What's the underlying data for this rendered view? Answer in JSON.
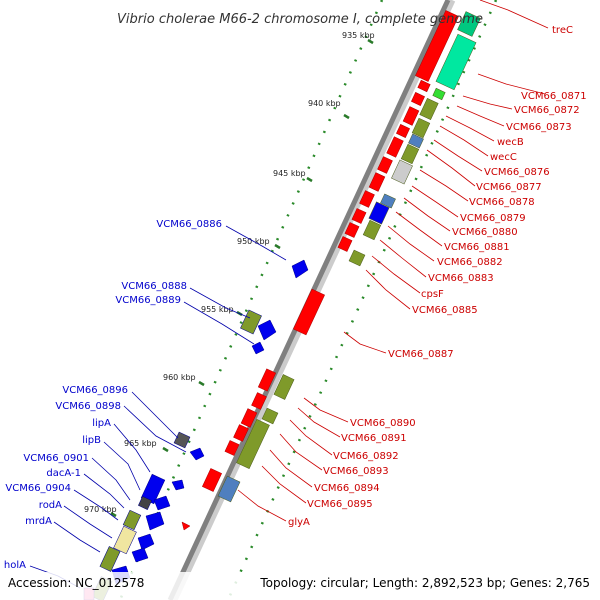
{
  "title": "Vibrio cholerae M66-2 chromosome I, complete genome",
  "accession": "Accession: NC_012578",
  "topology": "Topology: circular; Length: 2,892,523 bp; Genes: 2,765",
  "ticks": [
    "935 kbp",
    "940 kbp",
    "945 kbp",
    "950 kbp",
    "955 kbp",
    "960 kbp",
    "965 kbp",
    "970 kbp"
  ],
  "colors": {
    "forward": "#ff0000",
    "reverse": "#0000ff",
    "olive": "#7f9a2a",
    "teal": "#00e8a0",
    "steel": "#4f7fbf",
    "gray": "#888888",
    "backbone": "#808080"
  },
  "right_labels": [
    "treC",
    "VCM66_0871",
    "VCM66_0872",
    "VCM66_0873",
    "wecB",
    "wecC",
    "VCM66_0876",
    "VCM66_0877",
    "VCM66_0878",
    "VCM66_0879",
    "VCM66_0880",
    "VCM66_0881",
    "VCM66_0882",
    "VCM66_0883",
    "cpsF",
    "VCM66_0885",
    "VCM66_0887",
    "VCM66_0890",
    "VCM66_0891",
    "VCM66_0892",
    "VCM66_0893",
    "VCM66_0894",
    "VCM66_0895",
    "glyA"
  ],
  "left_labels": [
    "VCM66_0886",
    "VCM66_0888",
    "VCM66_0889",
    "VCM66_0896",
    "VCM66_0898",
    "lipA",
    "lipB",
    "VCM66_0901",
    "dacA-1",
    "VCM66_0904",
    "rodA",
    "mrdA",
    "holA"
  ]
}
